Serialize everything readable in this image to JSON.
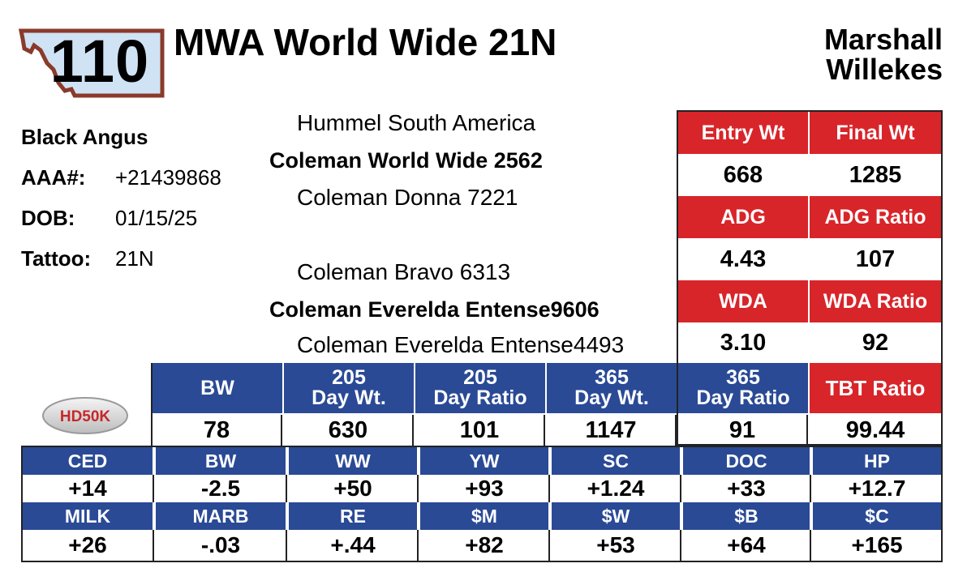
{
  "lot": {
    "number": "110"
  },
  "title": "MWA World Wide 21N",
  "owner": {
    "line1": "Marshall",
    "line2": "Willekes"
  },
  "info": {
    "breed": "Black Angus",
    "aaa_label": "AAA#:",
    "aaa_value": "+21439868",
    "dob_label": "DOB:",
    "dob_value": "01/15/25",
    "tattoo_label": "Tattoo:",
    "tattoo_value": "21N"
  },
  "pedigree": {
    "sire_sire": "Hummel South America",
    "sire": "Coleman World Wide 2562",
    "sire_dam": "Coleman Donna 7221",
    "dam_sire": "Coleman Bravo 6313",
    "dam": "Coleman Everelda Entense9606",
    "dam_dam": "Coleman Everelda Entense4493"
  },
  "performance": {
    "headers": [
      "Entry Wt",
      "Final Wt",
      "ADG",
      "ADG Ratio",
      "WDA",
      "WDA Ratio"
    ],
    "values": [
      "668",
      "1285",
      "4.43",
      "107",
      "3.10",
      "92"
    ]
  },
  "weights": {
    "headers": [
      [
        "BW",
        ""
      ],
      [
        "205",
        "Day Wt."
      ],
      [
        "205",
        "Day Ratio"
      ],
      [
        "365",
        "Day Wt."
      ],
      [
        "365",
        "Day Ratio"
      ]
    ],
    "values": [
      "78",
      "630",
      "101",
      "1147",
      "91"
    ],
    "tbt_label": "TBT Ratio",
    "tbt_value": "99.44"
  },
  "logo": {
    "text": "HD50K"
  },
  "epd": {
    "row1_headers": [
      "CED",
      "BW",
      "WW",
      "YW",
      "SC",
      "DOC",
      "HP"
    ],
    "row1_values": [
      "+14",
      "-2.5",
      "+50",
      "+93",
      "+1.24",
      "+33",
      "+12.7"
    ],
    "row2_headers": [
      "MILK",
      "MARB",
      "RE",
      "$M",
      "$W",
      "$B",
      "$C"
    ],
    "row2_values": [
      "+26",
      "-.03",
      "+.44",
      "+82",
      "+53",
      "+64",
      "+165"
    ]
  },
  "colors": {
    "red": "#d8252a",
    "blue": "#2a4a96",
    "badge_border": "#8b3a2a",
    "badge_fill": "#cfe3f5"
  }
}
